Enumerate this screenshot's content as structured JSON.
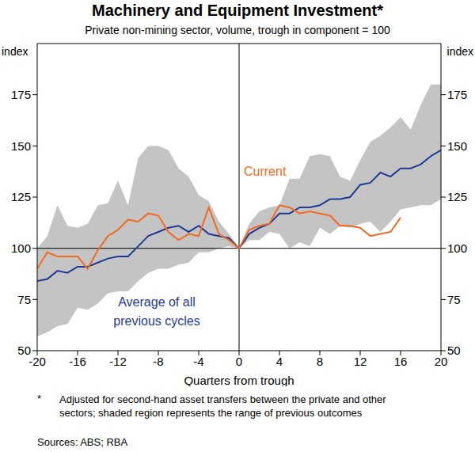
{
  "chart_data": {
    "type": "line",
    "title": "Machinery and Equipment Investment*",
    "subtitle": "Private non-mining sector, volume, trough in component = 100",
    "x_label": "Quarters from trough",
    "y_label": "index",
    "y2_label": "index",
    "x": [
      -20,
      -19,
      -18,
      -17,
      -16,
      -15,
      -14,
      -13,
      -12,
      -11,
      -10,
      -9,
      -8,
      -7,
      -6,
      -5,
      -4,
      -3,
      -2,
      -1,
      0,
      1,
      2,
      3,
      4,
      5,
      6,
      7,
      8,
      9,
      10,
      11,
      12,
      13,
      14,
      15,
      16,
      17,
      18,
      19,
      20
    ],
    "series": [
      {
        "name": "Average of all previous cycles",
        "color": "#1f3a93",
        "values": [
          84,
          85,
          89,
          88,
          91,
          91,
          93,
          95,
          96,
          96,
          101,
          106,
          108,
          110,
          111,
          108,
          111,
          107,
          106,
          105,
          100,
          107,
          110,
          112,
          117,
          117,
          120,
          120,
          121,
          124,
          124,
          125,
          131,
          132,
          137,
          135,
          139,
          139,
          141,
          145,
          148
        ]
      },
      {
        "name": "Current",
        "color": "#f26a21",
        "values": [
          90,
          98,
          96,
          96,
          96,
          90,
          99,
          106,
          109,
          114,
          113,
          117,
          116,
          108,
          104,
          107,
          106,
          120,
          107,
          104,
          100,
          109,
          111,
          112,
          121,
          120,
          117,
          118,
          117,
          116,
          111,
          111,
          110,
          106,
          107,
          108,
          115,
          null,
          null,
          null,
          null
        ]
      }
    ],
    "range": {
      "color": "#c4c4c4",
      "low": [
        57,
        59,
        62,
        63,
        71,
        70,
        73,
        78,
        79,
        79,
        84,
        88,
        90,
        90,
        92,
        93,
        98,
        98,
        100,
        101,
        100,
        104,
        104,
        108,
        107,
        100,
        103,
        101,
        110,
        107,
        111,
        110,
        112,
        113,
        108,
        113,
        119,
        120,
        121,
        121,
        124
      ],
      "high": [
        100,
        106,
        121,
        111,
        110,
        112,
        121,
        122,
        133,
        121,
        144,
        150,
        150,
        148,
        139,
        135,
        126,
        123,
        113,
        107,
        100,
        112,
        118,
        120,
        121,
        134,
        134,
        145,
        146,
        145,
        135,
        133,
        143,
        152,
        155,
        159,
        164,
        158,
        170,
        180,
        180
      ]
    },
    "xlim": [
      -20,
      20
    ],
    "xticks": [
      -20,
      -16,
      -12,
      -8,
      -4,
      0,
      4,
      8,
      12,
      16,
      20
    ],
    "ylim": [
      50,
      200
    ],
    "yticks": [
      50,
      75,
      100,
      125,
      150,
      175
    ],
    "y2lim": [
      50,
      200
    ],
    "y2ticks": [
      50,
      75,
      100,
      125,
      150,
      175
    ],
    "reference_x": 0,
    "reference_y": 100,
    "grid": false,
    "footnote_mark": "*",
    "footnote": "Adjusted for second-hand asset transfers between the private and other sectors; shaded region represents the range of previous outcomes",
    "sources": "Sources: ABS; RBA"
  }
}
